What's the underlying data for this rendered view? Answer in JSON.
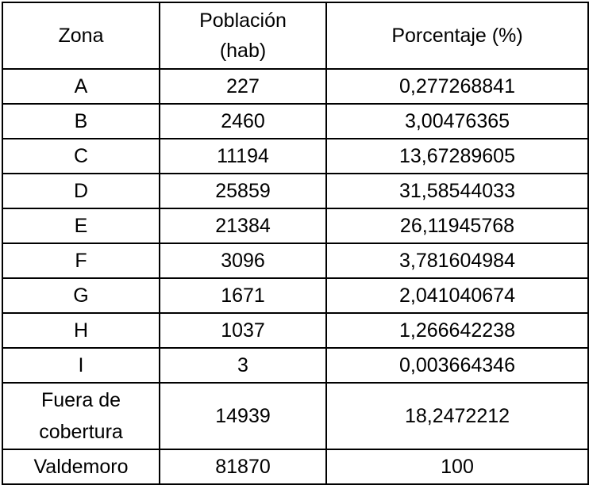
{
  "table": {
    "header": [
      "Zona",
      "Población (hab)",
      "Porcentaje (%)"
    ],
    "rows": [
      [
        "A",
        "227",
        "0,277268841"
      ],
      [
        "B",
        "2460",
        "3,00476365"
      ],
      [
        "C",
        "11194",
        "13,67289605"
      ],
      [
        "D",
        "25859",
        "31,58544033"
      ],
      [
        "E",
        "21384",
        "26,11945768"
      ],
      [
        "F",
        "3096",
        "3,781604984"
      ],
      [
        "G",
        "1671",
        "2,041040674"
      ],
      [
        "H",
        "1037",
        "1,266642238"
      ],
      [
        "I",
        "3",
        "0,003664346"
      ],
      [
        "Fuera de cobertura",
        "14939",
        "18,2472212"
      ],
      [
        "Valdemoro",
        "81870",
        "100"
      ]
    ]
  }
}
